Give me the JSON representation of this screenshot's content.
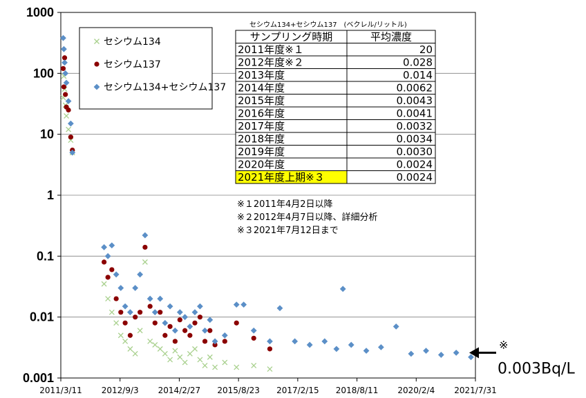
{
  "chart_data": {
    "type": "scatter",
    "y_scale": "log",
    "ylim": [
      0.001,
      1000
    ],
    "xlim": [
      "2011-03-11",
      "2021-07-31"
    ],
    "y_ticks": [
      "1000",
      "100",
      "10",
      "1",
      "0.1",
      "0.01",
      "0.001"
    ],
    "x_ticks": [
      "2011/3/11",
      "2012/9/3",
      "2014/2/27",
      "2015/8/23",
      "2017/2/15",
      "2018/8/11",
      "2020/2/4",
      "2021/7/31"
    ],
    "grid": "horizontal",
    "legend_position": "top-left",
    "colors": {
      "cs134": "#a8d08d",
      "cs137": "#8b0000",
      "total": "#5b8fc7"
    },
    "series": [
      {
        "name": "セシウム134",
        "marker": "x",
        "color": "#a8d08d",
        "points": [
          [
            "2011-04-02",
            40
          ],
          [
            "2011-04-08",
            90
          ],
          [
            "2011-04-15",
            55
          ],
          [
            "2011-04-22",
            30
          ],
          [
            "2011-05-01",
            20
          ],
          [
            "2011-05-20",
            12
          ],
          [
            "2011-06-10",
            8
          ],
          [
            "2011-06-25",
            5
          ],
          [
            "2012-04-10",
            0.035
          ],
          [
            "2012-05-15",
            0.02
          ],
          [
            "2012-06-20",
            0.012
          ],
          [
            "2012-07-30",
            0.008
          ],
          [
            "2012-09-10",
            0.005
          ],
          [
            "2012-10-20",
            0.004
          ],
          [
            "2012-12-05",
            0.003
          ],
          [
            "2013-01-20",
            0.0025
          ],
          [
            "2013-03-05",
            0.006
          ],
          [
            "2013-04-20",
            0.08
          ],
          [
            "2013-06-05",
            0.004
          ],
          [
            "2013-07-20",
            0.0035
          ],
          [
            "2013-09-05",
            0.003
          ],
          [
            "2013-10-20",
            0.0025
          ],
          [
            "2013-12-05",
            0.002
          ],
          [
            "2014-01-20",
            0.0028
          ],
          [
            "2014-03-05",
            0.0022
          ],
          [
            "2014-04-20",
            0.0018
          ],
          [
            "2014-06-05",
            0.0025
          ],
          [
            "2014-07-20",
            0.003
          ],
          [
            "2014-09-05",
            0.002
          ],
          [
            "2014-10-20",
            0.0016
          ],
          [
            "2014-12-05",
            0.0022
          ],
          [
            "2015-01-20",
            0.0015
          ],
          [
            "2015-04-20",
            0.0018
          ],
          [
            "2015-08-05",
            0.0015
          ],
          [
            "2016-01-10",
            0.0016
          ],
          [
            "2016-06-05",
            0.0014
          ]
        ]
      },
      {
        "name": "セシウム137",
        "marker": "circle",
        "color": "#8b0000",
        "points": [
          [
            "2011-04-02",
            120
          ],
          [
            "2011-04-08",
            60
          ],
          [
            "2011-04-15",
            180
          ],
          [
            "2011-04-22",
            45
          ],
          [
            "2011-05-01",
            28
          ],
          [
            "2011-05-20",
            25
          ],
          [
            "2011-06-10",
            9
          ],
          [
            "2011-06-25",
            5.5
          ],
          [
            "2012-04-10",
            0.08
          ],
          [
            "2012-05-15",
            0.045
          ],
          [
            "2012-06-20",
            0.06
          ],
          [
            "2012-07-30",
            0.02
          ],
          [
            "2012-09-10",
            0.012
          ],
          [
            "2012-10-20",
            0.008
          ],
          [
            "2012-12-05",
            0.005
          ],
          [
            "2013-01-20",
            0.01
          ],
          [
            "2013-03-05",
            0.012
          ],
          [
            "2013-04-20",
            0.14
          ],
          [
            "2013-06-05",
            0.015
          ],
          [
            "2013-07-20",
            0.008
          ],
          [
            "2013-09-05",
            0.012
          ],
          [
            "2013-10-20",
            0.005
          ],
          [
            "2013-12-05",
            0.007
          ],
          [
            "2014-01-20",
            0.004
          ],
          [
            "2014-03-05",
            0.009
          ],
          [
            "2014-04-20",
            0.006
          ],
          [
            "2014-06-05",
            0.005
          ],
          [
            "2014-07-20",
            0.008
          ],
          [
            "2014-09-05",
            0.01
          ],
          [
            "2014-10-20",
            0.004
          ],
          [
            "2014-12-05",
            0.006
          ],
          [
            "2015-01-20",
            0.0035
          ],
          [
            "2015-04-20",
            0.004
          ],
          [
            "2015-08-05",
            0.008
          ],
          [
            "2016-01-10",
            0.0045
          ],
          [
            "2016-06-05",
            0.003
          ]
        ]
      },
      {
        "name": "セシウム134+セシウム137",
        "marker": "diamond",
        "color": "#5b8fc7",
        "points": [
          [
            "2011-04-02",
            380
          ],
          [
            "2011-04-08",
            250
          ],
          [
            "2011-04-15",
            150
          ],
          [
            "2011-04-22",
            100
          ],
          [
            "2011-05-01",
            70
          ],
          [
            "2011-05-20",
            35
          ],
          [
            "2011-06-10",
            15
          ],
          [
            "2011-06-25",
            5
          ],
          [
            "2012-04-10",
            0.14
          ],
          [
            "2012-05-15",
            0.1
          ],
          [
            "2012-06-20",
            0.15
          ],
          [
            "2012-07-30",
            0.05
          ],
          [
            "2012-09-10",
            0.03
          ],
          [
            "2012-10-20",
            0.015
          ],
          [
            "2012-12-05",
            0.012
          ],
          [
            "2013-01-20",
            0.03
          ],
          [
            "2013-03-05",
            0.05
          ],
          [
            "2013-04-20",
            0.22
          ],
          [
            "2013-06-05",
            0.02
          ],
          [
            "2013-07-20",
            0.012
          ],
          [
            "2013-09-05",
            0.02
          ],
          [
            "2013-10-20",
            0.008
          ],
          [
            "2013-12-05",
            0.015
          ],
          [
            "2014-01-20",
            0.006
          ],
          [
            "2014-03-05",
            0.012
          ],
          [
            "2014-04-20",
            0.01
          ],
          [
            "2014-06-05",
            0.007
          ],
          [
            "2014-07-20",
            0.012
          ],
          [
            "2014-09-05",
            0.015
          ],
          [
            "2014-10-20",
            0.006
          ],
          [
            "2014-12-05",
            0.009
          ],
          [
            "2015-01-20",
            0.004
          ],
          [
            "2015-04-20",
            0.005
          ],
          [
            "2015-08-05",
            0.016
          ],
          [
            "2015-10-10",
            0.016
          ],
          [
            "2016-01-10",
            0.006
          ],
          [
            "2016-06-05",
            0.004
          ],
          [
            "2016-09-05",
            0.014
          ],
          [
            "2017-01-20",
            0.004
          ],
          [
            "2017-06-05",
            0.0035
          ],
          [
            "2017-10-20",
            0.004
          ],
          [
            "2018-02-05",
            0.003
          ],
          [
            "2018-04-05",
            0.029
          ],
          [
            "2018-06-20",
            0.0035
          ],
          [
            "2018-11-05",
            0.0028
          ],
          [
            "2019-03-20",
            0.0032
          ],
          [
            "2019-08-05",
            0.007
          ],
          [
            "2019-12-20",
            0.0025
          ],
          [
            "2020-05-05",
            0.0028
          ],
          [
            "2020-09-20",
            0.0024
          ],
          [
            "2021-02-05",
            0.0026
          ],
          [
            "2021-06-20",
            0.0022
          ]
        ]
      }
    ],
    "table": {
      "caption": "セシウム134+セシウム137　(ベクレル/リットル)",
      "headers": [
        "サンプリング時期",
        "平均濃度"
      ],
      "rows": [
        {
          "period": "2011年度※１",
          "value": "20",
          "highlight": false
        },
        {
          "period": "2012年度※２",
          "value": "0.028",
          "highlight": false
        },
        {
          "period": "2013年度",
          "value": "0.014",
          "highlight": false
        },
        {
          "period": "2014年度",
          "value": "0.0062",
          "highlight": false
        },
        {
          "period": "2015年度",
          "value": "0.0043",
          "highlight": false
        },
        {
          "period": "2016年度",
          "value": "0.0041",
          "highlight": false
        },
        {
          "period": "2017年度",
          "value": "0.0032",
          "highlight": false
        },
        {
          "period": "2018年度",
          "value": "0.0034",
          "highlight": false
        },
        {
          "period": "2019年度",
          "value": "0.0030",
          "highlight": false
        },
        {
          "period": "2020年度",
          "value": "0.0024",
          "highlight": false
        },
        {
          "period": "2021年度上期※３",
          "value": "0.0024",
          "highlight": true
        }
      ],
      "highlight_color": "#ffff00"
    },
    "notes": [
      "※１2011年4月2日以降",
      "※２2012年4月7日以降、詳細分析",
      "※３2021年7月12日まで"
    ],
    "annotation": {
      "mark": "※",
      "text": "0.003Bq/L"
    }
  }
}
